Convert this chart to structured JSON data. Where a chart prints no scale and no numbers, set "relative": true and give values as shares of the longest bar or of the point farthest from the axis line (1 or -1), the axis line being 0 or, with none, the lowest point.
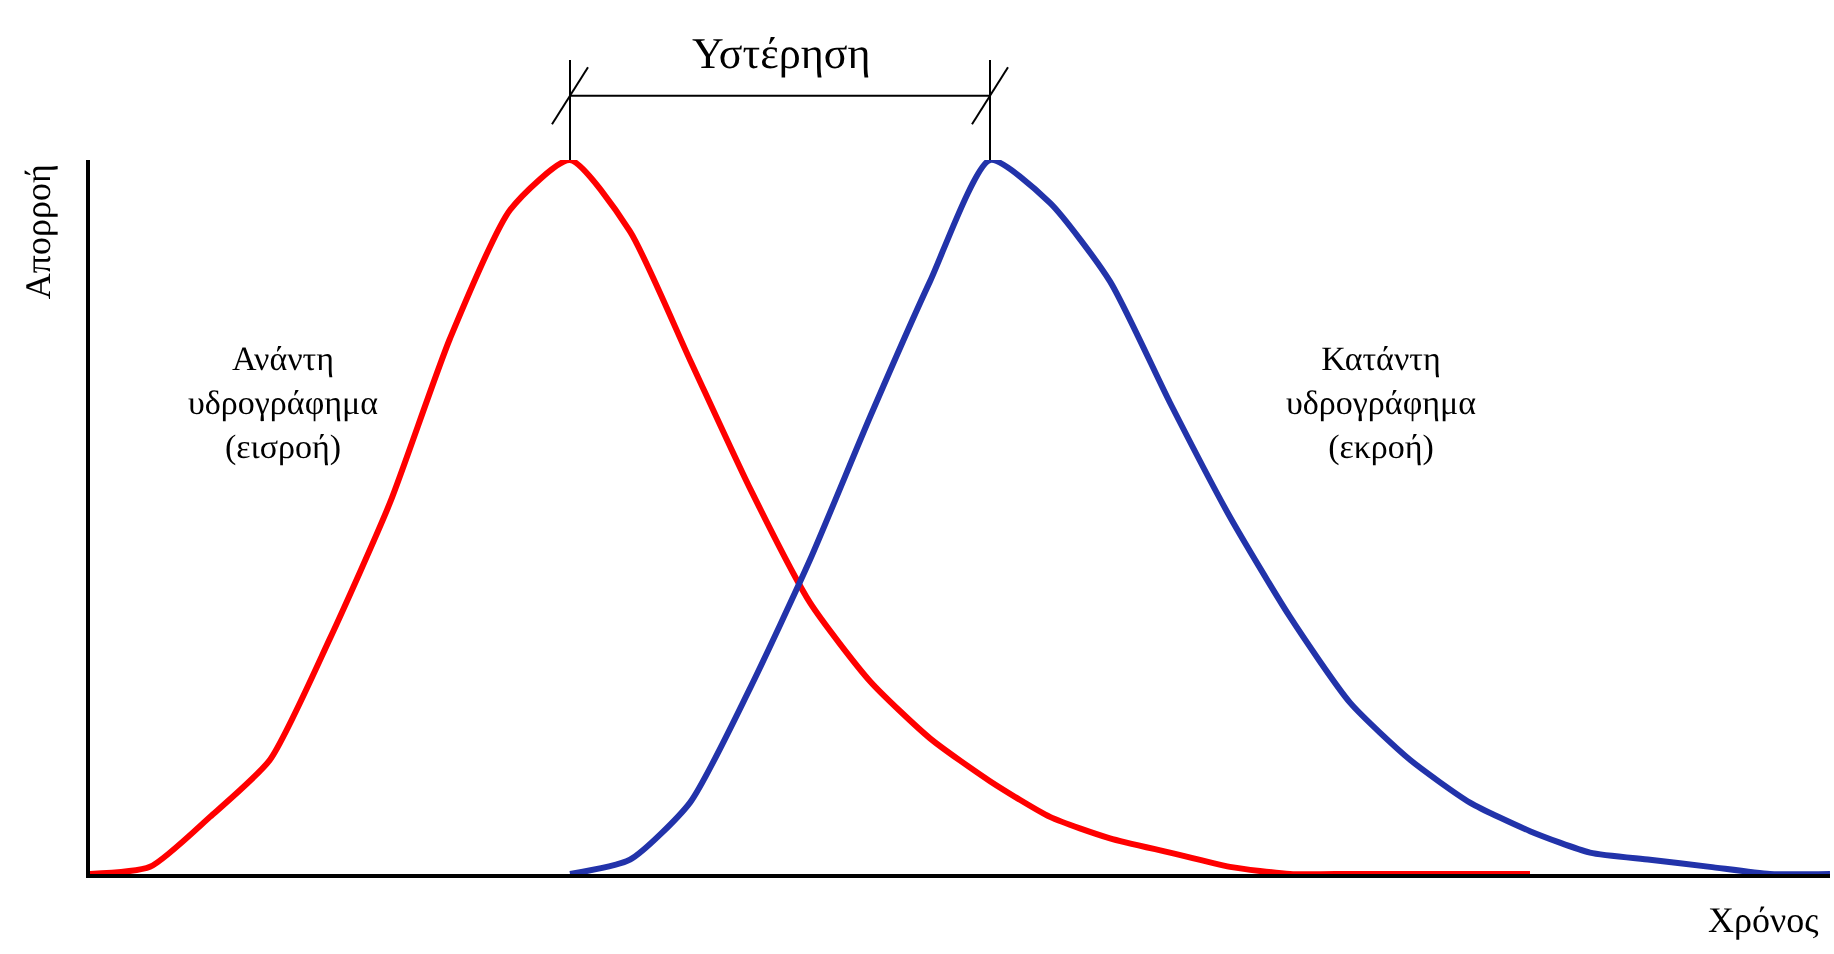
{
  "chart_data": {
    "type": "line",
    "relative": true,
    "xlabel": "Χρόνος",
    "ylabel": "Απορροή",
    "annotations": [
      "Υστέρηση"
    ],
    "legend": false,
    "marker": "none",
    "line_style": "solid",
    "categories": [
      null,
      null,
      null,
      null,
      null,
      null,
      null,
      null,
      null,
      null,
      null,
      null,
      null,
      null,
      null,
      null,
      null,
      null,
      null,
      null,
      null,
      null,
      null,
      null,
      null,
      null,
      null,
      null,
      null,
      null
    ],
    "series": [
      {
        "name": "Ανάντη υδρογράφημα (εισροή)",
        "color": "#ff0000",
        "values": [
          0,
          0.01,
          0.08,
          0.16,
          0.33,
          0.52,
          0.75,
          0.93,
          1.0,
          0.9,
          0.72,
          0.54,
          0.38,
          0.27,
          0.19,
          0.13,
          0.08,
          0.05,
          0.03,
          0.01,
          0,
          0,
          0,
          0,
          0,
          null,
          null,
          null,
          null,
          null
        ]
      },
      {
        "name": "Κατάντη υδρογράφημα (εκροή)",
        "color": "#2233aa",
        "values": [
          null,
          null,
          null,
          null,
          null,
          null,
          null,
          null,
          0,
          0.02,
          0.1,
          0.26,
          0.44,
          0.64,
          0.83,
          1.0,
          0.94,
          0.83,
          0.66,
          0.5,
          0.36,
          0.24,
          0.16,
          0.1,
          0.06,
          0.03,
          0.02,
          0.01,
          0,
          0
        ]
      }
    ]
  }
}
